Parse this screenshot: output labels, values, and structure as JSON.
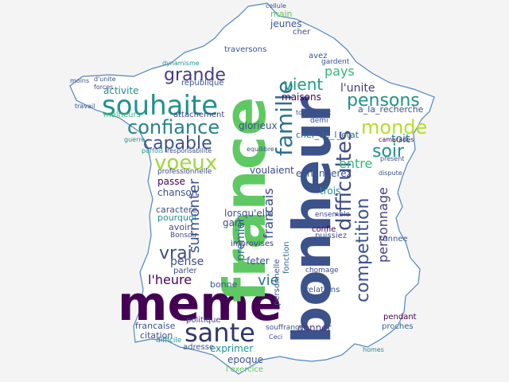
{
  "colors": {
    "background": "#f4f4f4",
    "map_fill": "#ffffff",
    "map_outline": "#4f86bd",
    "dark_purple": "#440154",
    "indigo": "#3b528b",
    "teal": "#21918c",
    "green": "#5ec962",
    "yellow": "#c8d93b"
  },
  "words": [
    {
      "text": "meme",
      "color": "#440154"
    },
    {
      "text": "bonheur",
      "color": "#3b528b"
    },
    {
      "text": "france",
      "color": "#5ec962"
    },
    {
      "text": "souhaite",
      "color": "#21918c"
    },
    {
      "text": "difficultes",
      "color": "#3e4a89"
    },
    {
      "text": "sante",
      "color": "#31366e"
    },
    {
      "text": "confiance",
      "color": "#26828e"
    },
    {
      "text": "voeux",
      "color": "#a0d640"
    },
    {
      "text": "famille",
      "color": "#2c728e"
    },
    {
      "text": "competition",
      "color": "#3b528b"
    },
    {
      "text": "pensons",
      "color": "#21918c"
    },
    {
      "text": "monde",
      "color": "#b5de2b"
    },
    {
      "text": "grande",
      "color": "#443a83"
    },
    {
      "text": "capable",
      "color": "#3b528b"
    },
    {
      "text": "vient",
      "color": "#1f9e89"
    },
    {
      "text": "pays",
      "color": "#35b779"
    },
    {
      "text": "francais",
      "color": "#3e4a89"
    },
    {
      "text": "surmonter",
      "color": "#3b528b"
    },
    {
      "text": "personnage",
      "color": "#443983"
    },
    {
      "text": "vrai",
      "color": "#3e4a89"
    },
    {
      "text": "l'heure",
      "color": "#440154"
    },
    {
      "text": "premier",
      "color": "#31688e"
    },
    {
      "text": "vie",
      "color": "#2c728e"
    },
    {
      "text": "exprimer",
      "color": "#21918c"
    },
    {
      "text": "epoque",
      "color": "#3b528b"
    },
    {
      "text": "pense",
      "color": "#3e4a89"
    },
    {
      "text": "l'unite",
      "color": "#443a83"
    },
    {
      "text": "a_la_recherche",
      "color": "#3b528b"
    },
    {
      "text": "entre",
      "color": "#35b779"
    },
    {
      "text": "toit",
      "color": "#26828e"
    },
    {
      "text": "soir",
      "color": "#21918c"
    },
    {
      "text": "maisons",
      "color": "#440154"
    },
    {
      "text": "republique",
      "color": "#3b528b"
    },
    {
      "text": "activite",
      "color": "#21918c"
    },
    {
      "text": "attachement",
      "color": "#414487"
    },
    {
      "text": "glorieux",
      "color": "#3b528b"
    },
    {
      "text": "chef_de_l_etat",
      "color": "#31688e"
    },
    {
      "text": "voulaient",
      "color": "#3e4a89"
    },
    {
      "text": "echangerez",
      "color": "#3b528b"
    },
    {
      "text": "passe",
      "color": "#440154"
    },
    {
      "text": "chanson",
      "color": "#3b528b"
    },
    {
      "text": "caractere",
      "color": "#3b528b"
    },
    {
      "text": "pourquoi",
      "color": "#21918c"
    },
    {
      "text": "avoir",
      "color": "#3b528b"
    },
    {
      "text": "Bonsoir",
      "color": "#3e4a89"
    },
    {
      "text": "lorsqu'elle",
      "color": "#3b528b"
    },
    {
      "text": "gars",
      "color": "#3e4a89"
    },
    {
      "text": "improvises",
      "color": "#443a83"
    },
    {
      "text": "feter",
      "color": "#3b528b"
    },
    {
      "text": "fonction",
      "color": "#31688e"
    },
    {
      "text": "trois",
      "color": "#21918c"
    },
    {
      "text": "confie",
      "color": "#440154"
    },
    {
      "text": "puissiez",
      "color": "#3b528b"
    },
    {
      "text": "ensemble",
      "color": "#3e4a89"
    },
    {
      "text": "l'annee",
      "color": "#3b528b"
    },
    {
      "text": "relations",
      "color": "#3b528b"
    },
    {
      "text": "chomage",
      "color": "#3e4a89"
    },
    {
      "text": "pendant",
      "color": "#440154"
    },
    {
      "text": "proches",
      "color": "#31688e"
    },
    {
      "text": "donner",
      "color": "#443a83"
    },
    {
      "text": "souffrance",
      "color": "#3b528b"
    },
    {
      "text": "personnelle",
      "color": "#3b528b"
    },
    {
      "text": "francaise",
      "color": "#3b528b"
    },
    {
      "text": "politique",
      "color": "#3e4a89"
    },
    {
      "text": "citation",
      "color": "#3b528b"
    },
    {
      "text": "bonne",
      "color": "#3b528b"
    },
    {
      "text": "parler",
      "color": "#3e4a89"
    },
    {
      "text": "adresse",
      "color": "#3b528b"
    },
    {
      "text": "difficile",
      "color": "#21918c"
    },
    {
      "text": "l'exercice",
      "color": "#5ec962"
    },
    {
      "text": "jeunes",
      "color": "#3b528b"
    },
    {
      "text": "cher",
      "color": "#3e4a89"
    },
    {
      "text": "main",
      "color": "#5ec962"
    },
    {
      "text": "avez",
      "color": "#3b528b"
    },
    {
      "text": "gardent",
      "color": "#3b528b"
    },
    {
      "text": "traversons",
      "color": "#3b528b"
    },
    {
      "text": "malheurs",
      "color": "#35b779"
    },
    {
      "text": "responsabilite",
      "color": "#3b528b"
    },
    {
      "text": "parfois",
      "color": "#21918c"
    },
    {
      "text": "professionnelle",
      "color": "#3e4a89"
    },
    {
      "text": "dynamisme",
      "color": "#21918c"
    },
    {
      "text": "cellule",
      "color": "#3b528b"
    },
    {
      "text": "d'unite",
      "color": "#3b528b"
    },
    {
      "text": "travail",
      "color": "#3b528b"
    },
    {
      "text": "moins",
      "color": "#3b528b"
    },
    {
      "text": "forces",
      "color": "#3e4a89"
    },
    {
      "text": "guerre",
      "color": "#21918c"
    },
    {
      "text": "demi",
      "color": "#3b528b"
    },
    {
      "text": "totalement",
      "color": "#3e4a89"
    },
    {
      "text": "equilibre",
      "color": "#3b528b"
    },
    {
      "text": "camarades",
      "color": "#440154"
    },
    {
      "text": "present",
      "color": "#3b528b"
    },
    {
      "text": "dispute",
      "color": "#3b528b"
    },
    {
      "text": "Ceci",
      "color": "#3e4a89"
    },
    {
      "text": "homes",
      "color": "#21918c"
    }
  ]
}
